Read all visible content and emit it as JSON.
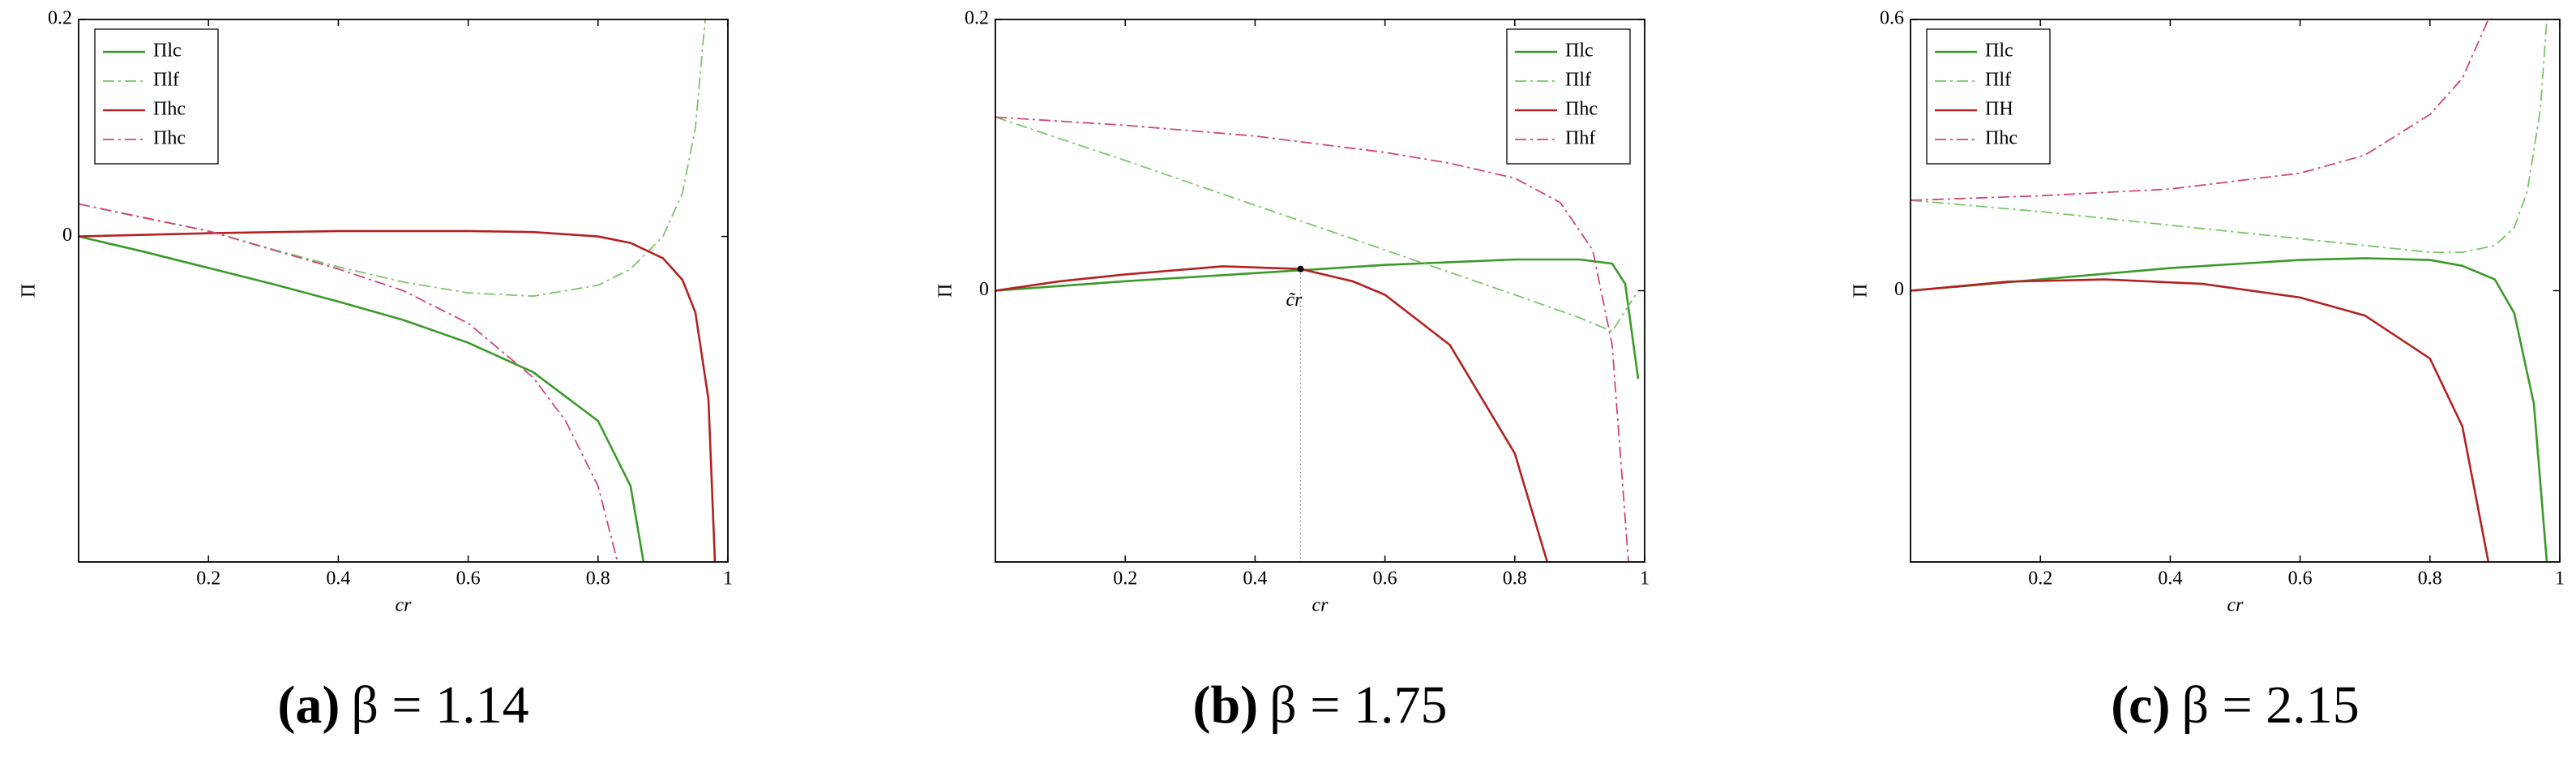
{
  "chart_data": [
    {
      "type": "line",
      "ylabel": "Π",
      "xlabel": "cr",
      "caption_label": "(a)",
      "caption": "β = 1.14",
      "xlim": [
        0,
        1
      ],
      "ylim": [
        -0.3,
        0.2
      ],
      "xticks": [
        0.2,
        0.4,
        0.6,
        0.8,
        1
      ],
      "yticks": [
        0,
        0.2
      ],
      "legend": "upper left",
      "series": [
        {
          "name": "Πlc",
          "color": "#3a9a2a",
          "style": "solid",
          "x": [
            0,
            0.1,
            0.2,
            0.3,
            0.4,
            0.5,
            0.6,
            0.7,
            0.8,
            0.85,
            0.87
          ],
          "values": [
            0,
            -0.014,
            -0.029,
            -0.044,
            -0.06,
            -0.077,
            -0.098,
            -0.125,
            -0.17,
            -0.23,
            -0.3
          ]
        },
        {
          "name": "Πlf",
          "color": "#7cc46a",
          "style": "dashdot",
          "x": [
            0,
            0.1,
            0.2,
            0.3,
            0.4,
            0.5,
            0.6,
            0.7,
            0.8,
            0.85,
            0.9,
            0.93,
            0.95,
            0.965
          ],
          "values": [
            0.03,
            0.017,
            0.005,
            -0.012,
            -0.028,
            -0.042,
            -0.052,
            -0.055,
            -0.045,
            -0.03,
            0.0,
            0.04,
            0.1,
            0.2
          ]
        },
        {
          "name": "Πhc",
          "color": "#b22222",
          "style": "solid",
          "x": [
            0,
            0.2,
            0.4,
            0.5,
            0.6,
            0.7,
            0.8,
            0.85,
            0.9,
            0.93,
            0.95,
            0.97,
            0.98
          ],
          "values": [
            0,
            0.003,
            0.005,
            0.005,
            0.005,
            0.004,
            0.0,
            -0.006,
            -0.02,
            -0.04,
            -0.07,
            -0.15,
            -0.3
          ]
        },
        {
          "name": "Πhc",
          "color": "#d0457a",
          "style": "dashdot",
          "x": [
            0,
            0.2,
            0.4,
            0.5,
            0.6,
            0.7,
            0.75,
            0.8,
            0.83
          ],
          "values": [
            0.03,
            0.005,
            -0.03,
            -0.05,
            -0.08,
            -0.13,
            -0.17,
            -0.23,
            -0.3
          ]
        }
      ]
    },
    {
      "type": "line",
      "ylabel": "Π",
      "xlabel": "cr",
      "caption_label": "(b)",
      "caption": "β = 1.75",
      "xlim": [
        0,
        1
      ],
      "ylim": [
        -0.2,
        0.2
      ],
      "xticks": [
        0.2,
        0.4,
        0.6,
        0.8,
        1
      ],
      "yticks": [
        0,
        0.2
      ],
      "legend": "upper right",
      "annotation": {
        "text": "c̃r",
        "x": 0.47,
        "y": 0.016
      },
      "series": [
        {
          "name": "Πlc",
          "color": "#3a9a2a",
          "style": "solid",
          "x": [
            0,
            0.2,
            0.4,
            0.6,
            0.8,
            0.9,
            0.95,
            0.97,
            0.99
          ],
          "values": [
            0,
            0.007,
            0.013,
            0.019,
            0.023,
            0.023,
            0.02,
            0.005,
            -0.065
          ]
        },
        {
          "name": "Πlf",
          "color": "#7cc46a",
          "style": "dashdot",
          "x": [
            0,
            0.2,
            0.4,
            0.6,
            0.8,
            0.9,
            0.95,
            0.99
          ],
          "values": [
            0.128,
            0.096,
            0.063,
            0.03,
            -0.003,
            -0.02,
            -0.03,
            0.0
          ]
        },
        {
          "name": "Πhc",
          "color": "#b22222",
          "style": "solid",
          "x": [
            0,
            0.1,
            0.2,
            0.35,
            0.47,
            0.55,
            0.6,
            0.7,
            0.8,
            0.85
          ],
          "values": [
            0,
            0.007,
            0.012,
            0.018,
            0.016,
            0.007,
            -0.003,
            -0.04,
            -0.12,
            -0.2
          ]
        },
        {
          "name": "Πhf",
          "color": "#d0457a",
          "style": "dashdot",
          "x": [
            0,
            0.2,
            0.4,
            0.6,
            0.7,
            0.8,
            0.87,
            0.92,
            0.95,
            0.975
          ],
          "values": [
            0.128,
            0.122,
            0.114,
            0.102,
            0.094,
            0.083,
            0.065,
            0.03,
            -0.04,
            -0.2
          ]
        }
      ]
    },
    {
      "type": "line",
      "ylabel": "Π",
      "xlabel": "cr",
      "caption_label": "(c)",
      "caption": "β = 2.15",
      "xlim": [
        0,
        1
      ],
      "ylim": [
        -0.6,
        0.6
      ],
      "xticks": [
        0.2,
        0.4,
        0.6,
        0.8,
        1
      ],
      "yticks": [
        0,
        0.6
      ],
      "legend": "upper left",
      "series": [
        {
          "name": "Πlc",
          "color": "#3a9a2a",
          "style": "solid",
          "x": [
            0,
            0.2,
            0.4,
            0.6,
            0.7,
            0.8,
            0.85,
            0.9,
            0.93,
            0.96,
            0.98
          ],
          "values": [
            0,
            0.025,
            0.05,
            0.068,
            0.072,
            0.068,
            0.055,
            0.025,
            -0.05,
            -0.25,
            -0.6
          ]
        },
        {
          "name": "Πlf",
          "color": "#7cc46a",
          "style": "dashdot",
          "x": [
            0,
            0.2,
            0.4,
            0.6,
            0.8,
            0.85,
            0.9,
            0.93,
            0.95,
            0.97,
            0.98
          ],
          "values": [
            0.2,
            0.175,
            0.145,
            0.115,
            0.085,
            0.085,
            0.1,
            0.14,
            0.22,
            0.4,
            0.6
          ]
        },
        {
          "name": "ΠH",
          "color": "#b22222",
          "style": "solid",
          "x": [
            0,
            0.15,
            0.3,
            0.45,
            0.6,
            0.7,
            0.8,
            0.85,
            0.89
          ],
          "values": [
            0,
            0.02,
            0.025,
            0.015,
            -0.015,
            -0.055,
            -0.15,
            -0.3,
            -0.6
          ]
        },
        {
          "name": "Πhc",
          "color": "#d0457a",
          "style": "dashdot",
          "x": [
            0,
            0.2,
            0.4,
            0.6,
            0.7,
            0.8,
            0.85,
            0.89
          ],
          "values": [
            0.2,
            0.21,
            0.225,
            0.26,
            0.3,
            0.39,
            0.47,
            0.6
          ]
        }
      ]
    }
  ]
}
